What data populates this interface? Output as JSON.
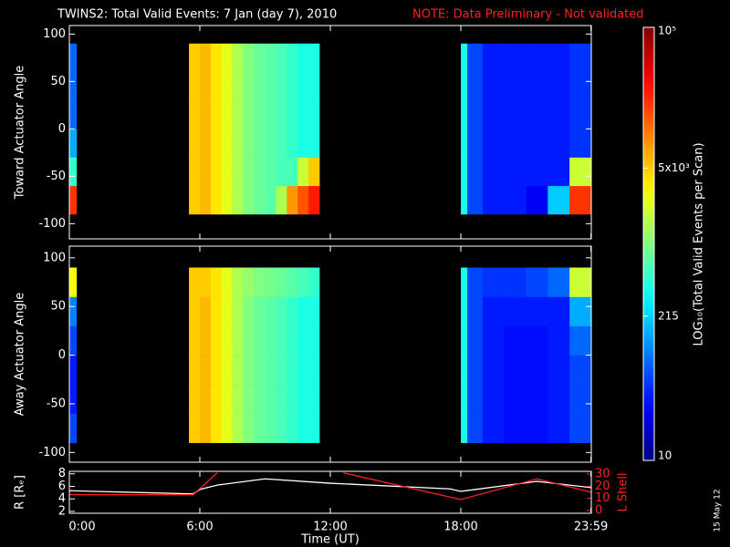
{
  "title": "TWINS2: Total Valid Events:  7 Jan (day   7), 2010",
  "note": "NOTE: Data Preliminary - Not validated",
  "date_stamp": "15 May 12",
  "colorbar": {
    "label": "LOG₁₀(Total Valid Events per Scan)",
    "lim": [
      10,
      100000
    ],
    "log": true,
    "ticks": [
      10,
      215,
      {
        "value": 5000,
        "label": "5x10³"
      },
      {
        "value": 100000,
        "label": "10⁵"
      }
    ]
  },
  "chart_data": [
    {
      "type": "heatmap",
      "ylabel": "Toward Actuator Angle",
      "xlim": [
        0,
        24
      ],
      "ylim": [
        -116,
        109
      ],
      "yticks": [
        -100,
        -50,
        0,
        50,
        100
      ],
      "x_bins": [
        0,
        0.33,
        5.5,
        6,
        6.5,
        7,
        7.5,
        8,
        8.5,
        9,
        9.5,
        10,
        10.5,
        11,
        11.5,
        18,
        18.3,
        19,
        20,
        21,
        22,
        23,
        24
      ],
      "y_bins": [
        -90,
        -60,
        -30,
        0,
        30,
        60,
        90
      ],
      "values": [
        [
          20000,
          500,
          150,
          80,
          80,
          80
        ],
        [
          null,
          null,
          null,
          null,
          null,
          null
        ],
        [
          5000,
          5000,
          5000,
          5000,
          5000,
          5000
        ],
        [
          6000,
          6000,
          6000,
          6000,
          6000,
          6000
        ],
        [
          4000,
          4000,
          4000,
          4000,
          4000,
          4000
        ],
        [
          2500,
          2500,
          2500,
          2500,
          2500,
          2500
        ],
        [
          1500,
          1500,
          1500,
          1500,
          1500,
          1500
        ],
        [
          1000,
          1000,
          1000,
          1000,
          1000,
          1000
        ],
        [
          800,
          800,
          800,
          800,
          800,
          800
        ],
        [
          700,
          700,
          700,
          700,
          700,
          700
        ],
        [
          1500,
          600,
          600,
          600,
          600,
          600
        ],
        [
          8000,
          600,
          500,
          500,
          500,
          500
        ],
        [
          15000,
          2000,
          400,
          400,
          400,
          400
        ],
        [
          25000,
          5000,
          400,
          400,
          400,
          400
        ],
        [
          null,
          null,
          null,
          null,
          null,
          null
        ],
        [
          400,
          400,
          400,
          400,
          400,
          400
        ],
        [
          60,
          60,
          60,
          60,
          60,
          60
        ],
        [
          40,
          40,
          40,
          40,
          40,
          40
        ],
        [
          40,
          40,
          40,
          40,
          40,
          40
        ],
        [
          30,
          40,
          40,
          40,
          40,
          40
        ],
        [
          200,
          40,
          40,
          40,
          40,
          40
        ],
        [
          20000,
          2000,
          50,
          50,
          50,
          50
        ]
      ]
    },
    {
      "type": "heatmap",
      "ylabel": "Away Actuator Angle",
      "xlim": [
        0,
        24
      ],
      "ylim": [
        -110,
        112
      ],
      "yticks": [
        -100,
        -50,
        0,
        50,
        100
      ],
      "x_bins": [
        0,
        0.33,
        5.5,
        6,
        6.5,
        7,
        7.5,
        8,
        8.5,
        9,
        9.5,
        10,
        10.5,
        11,
        11.5,
        18,
        18.3,
        19,
        20,
        21,
        22,
        23,
        24
      ],
      "y_bins": [
        -90,
        -60,
        -30,
        0,
        30,
        60,
        90
      ],
      "values": [
        [
          60,
          40,
          40,
          60,
          100,
          3000
        ],
        [
          null,
          null,
          null,
          null,
          null,
          null
        ],
        [
          5000,
          5000,
          5000,
          5000,
          5000,
          5000
        ],
        [
          6000,
          6000,
          6000,
          6000,
          6000,
          5000
        ],
        [
          4000,
          4000,
          4000,
          4000,
          4000,
          4000
        ],
        [
          2500,
          2500,
          2500,
          2500,
          2500,
          2500
        ],
        [
          1500,
          1500,
          1500,
          1500,
          1500,
          1500
        ],
        [
          1000,
          1000,
          1000,
          1000,
          1000,
          1200
        ],
        [
          800,
          800,
          800,
          800,
          800,
          1000
        ],
        [
          700,
          700,
          700,
          700,
          700,
          900
        ],
        [
          600,
          600,
          600,
          600,
          600,
          800
        ],
        [
          500,
          500,
          500,
          500,
          500,
          700
        ],
        [
          400,
          400,
          400,
          400,
          400,
          600
        ],
        [
          400,
          400,
          400,
          400,
          400,
          500
        ],
        [
          null,
          null,
          null,
          null,
          null,
          null
        ],
        [
          400,
          400,
          400,
          400,
          400,
          400
        ],
        [
          60,
          60,
          60,
          60,
          60,
          60
        ],
        [
          40,
          40,
          40,
          40,
          40,
          50
        ],
        [
          35,
          35,
          35,
          35,
          40,
          50
        ],
        [
          35,
          35,
          35,
          35,
          40,
          60
        ],
        [
          40,
          40,
          40,
          40,
          40,
          80
        ],
        [
          60,
          60,
          60,
          80,
          150,
          2000
        ]
      ]
    },
    {
      "type": "line",
      "xlabel": "Time (UT)",
      "xlim": [
        0,
        24
      ],
      "xticks": [
        {
          "value": 0,
          "label": "0:00"
        },
        {
          "value": 6,
          "label": "6:00"
        },
        {
          "value": 12,
          "label": "12:00"
        },
        {
          "value": 18,
          "label": "18:00"
        },
        {
          "value": 23.983,
          "label": "23:59"
        }
      ],
      "ylim": [
        1.7,
        8.4
      ],
      "yticks": [
        2,
        4,
        6,
        8
      ],
      "y2lim": [
        -2.3,
        32.2
      ],
      "y2ticks": [
        0,
        10,
        20,
        30
      ],
      "x": [
        0,
        5.7,
        6,
        6.8,
        9,
        12,
        12.6,
        17.5,
        18,
        21.5,
        24
      ],
      "series": [
        {
          "name": "R [Rₑ]",
          "color": "#ffffff",
          "values": [
            5.3,
            4.8,
            5.5,
            6.2,
            7.2,
            6.5,
            6.4,
            5.6,
            5.2,
            6.8,
            5.8
          ]
        },
        {
          "name": "L Shell",
          "color": "#ff2020",
          "axis": "y2",
          "values": [
            13,
            13,
            18,
            31,
            null,
            null,
            31,
            11,
            9,
            26,
            15
          ]
        }
      ]
    }
  ]
}
